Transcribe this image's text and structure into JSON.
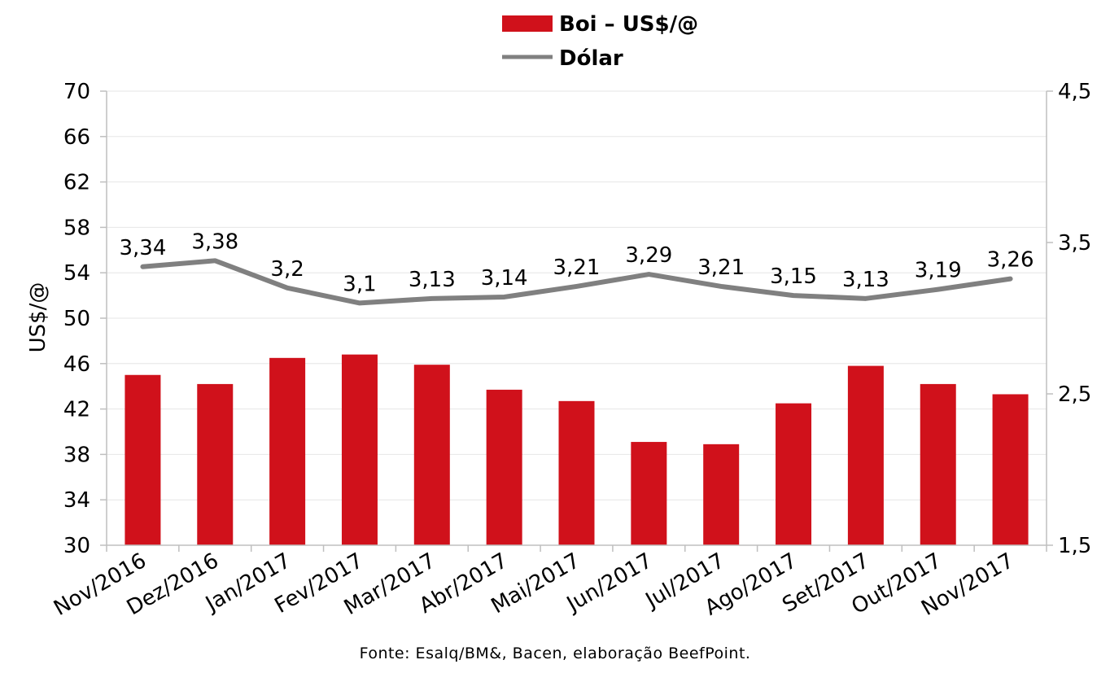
{
  "colors": {
    "bar": "#d0111b",
    "line": "#808080",
    "grid": "#e6e6e6",
    "axis": "#bfbfbf",
    "text": "#000000"
  },
  "legend": {
    "bar_label": "Boi – US$/@",
    "line_label": "Dólar",
    "placement": "top-center"
  },
  "footnote": "Fonte: Esalq/BM&, Bacen, elaboração BeefPoint.",
  "chart_data": {
    "type": "bar",
    "title": "",
    "ylabel": "US$/@",
    "y2label": "",
    "categories": [
      "Nov/2016",
      "Dez/2016",
      "Jan/2017",
      "Fev/2017",
      "Mar/2017",
      "Abr/2017",
      "Mai/2017",
      "Jun/2017",
      "Jul/2017",
      "Ago/2017",
      "Set/2017",
      "Out/2017",
      "Nov/2017"
    ],
    "ylim": [
      30,
      70
    ],
    "yticks": [
      "30",
      "34",
      "38",
      "42",
      "46",
      "50",
      "54",
      "58",
      "62",
      "66",
      "70"
    ],
    "y2lim": [
      1.5,
      4.5
    ],
    "y2ticks": [
      "1,5",
      "2,5",
      "3,5",
      "4,5"
    ],
    "grid": true,
    "series": [
      {
        "name": "Boi – US$/@",
        "type": "bar",
        "axis": "left",
        "values": [
          45.0,
          44.2,
          46.5,
          46.8,
          45.9,
          43.7,
          42.7,
          39.1,
          38.9,
          42.5,
          45.8,
          44.2,
          43.3
        ]
      },
      {
        "name": "Dólar",
        "type": "line",
        "axis": "right",
        "values": [
          3.34,
          3.38,
          3.2,
          3.1,
          3.13,
          3.14,
          3.21,
          3.29,
          3.21,
          3.15,
          3.13,
          3.19,
          3.26
        ],
        "labels": [
          "3,34",
          "3,38",
          "3,2",
          "3,1",
          "3,13",
          "3,14",
          "3,21",
          "3,29",
          "3,21",
          "3,15",
          "3,13",
          "3,19",
          "3,26"
        ]
      }
    ]
  }
}
